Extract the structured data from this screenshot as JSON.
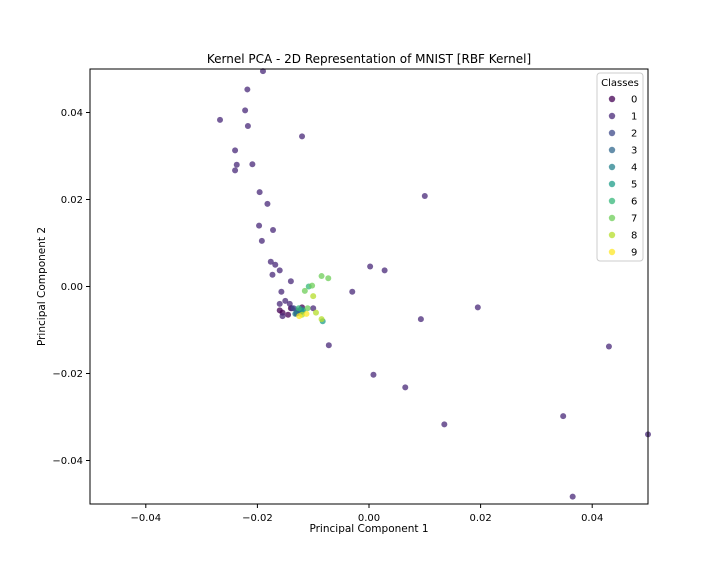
{
  "chart_data": {
    "type": "scatter",
    "title": "Kernel PCA - 2D Representation of MNIST [RBF Kernel]",
    "xlabel": "Principal Component 1",
    "ylabel": "Principal Component 2",
    "xlim": [
      -0.05,
      0.05
    ],
    "ylim": [
      -0.05,
      0.05
    ],
    "xticks": [
      -0.04,
      -0.02,
      0.0,
      0.02,
      0.04
    ],
    "xtick_labels": [
      "−0.04",
      "−0.02",
      "0.00",
      "0.02",
      "0.04"
    ],
    "yticks": [
      -0.04,
      -0.02,
      0.0,
      0.02,
      0.04
    ],
    "ytick_labels": [
      "−0.04",
      "−0.02",
      "0.00",
      "0.02",
      "0.04"
    ],
    "grid": false,
    "legend": {
      "title": "Classes",
      "placement": "top-right",
      "entries": [
        "0",
        "1",
        "2",
        "3",
        "4",
        "5",
        "6",
        "7",
        "8",
        "9"
      ]
    },
    "colors": [
      "#440154",
      "#482878",
      "#3e4989",
      "#31688e",
      "#26828e",
      "#1f9e89",
      "#35b779",
      "#6ece58",
      "#b5de2b",
      "#fde725"
    ],
    "series": [
      {
        "name": "0",
        "points": [
          [
            -0.0155,
            -0.006
          ],
          [
            -0.0145,
            -0.0065
          ],
          [
            -0.016,
            -0.0055
          ],
          [
            -0.014,
            -0.005
          ],
          [
            -0.013,
            -0.0062
          ],
          [
            -0.012,
            -0.0048
          ]
        ]
      },
      {
        "name": "1",
        "points": [
          [
            -0.019,
            0.0495
          ],
          [
            -0.0218,
            0.0453
          ],
          [
            -0.0222,
            0.0405
          ],
          [
            -0.0267,
            0.0383
          ],
          [
            -0.0217,
            0.0369
          ],
          [
            -0.012,
            0.0345
          ],
          [
            -0.024,
            0.0313
          ],
          [
            -0.0237,
            0.028
          ],
          [
            -0.0209,
            0.0281
          ],
          [
            -0.024,
            0.0267
          ],
          [
            -0.0196,
            0.0217
          ],
          [
            -0.0182,
            0.019
          ],
          [
            0.01,
            0.0208
          ],
          [
            -0.0197,
            0.014
          ],
          [
            -0.0172,
            0.013
          ],
          [
            -0.0192,
            0.0105
          ],
          [
            -0.0176,
            0.0057
          ],
          [
            -0.0168,
            0.005
          ],
          [
            0.0002,
            0.0046
          ],
          [
            0.0028,
            0.0037
          ],
          [
            -0.016,
            0.0037
          ],
          [
            -0.0173,
            0.0027
          ],
          [
            -0.014,
            0.0012
          ],
          [
            -0.003,
            -0.0012
          ],
          [
            -0.0157,
            -0.0012
          ],
          [
            0.0195,
            -0.0048
          ],
          [
            -0.016,
            -0.004
          ],
          [
            -0.015,
            -0.0033
          ],
          [
            -0.0142,
            -0.004
          ],
          [
            -0.0138,
            -0.005
          ],
          [
            -0.01,
            -0.005
          ],
          [
            0.0093,
            -0.0075
          ],
          [
            -0.0155,
            -0.0068
          ],
          [
            -0.0072,
            -0.0135
          ],
          [
            0.043,
            -0.0138
          ],
          [
            0.0008,
            -0.0203
          ],
          [
            0.0065,
            -0.0232
          ],
          [
            0.0348,
            -0.0298
          ],
          [
            0.0135,
            -0.0317
          ],
          [
            0.05,
            -0.034
          ],
          [
            0.0365,
            -0.0483
          ]
        ]
      },
      {
        "name": "2",
        "points": [
          [
            -0.013,
            -0.0055
          ],
          [
            -0.0125,
            -0.006
          ],
          [
            -0.0135,
            -0.005
          ]
        ]
      },
      {
        "name": "3",
        "points": [
          [
            -0.0128,
            -0.0058
          ],
          [
            -0.0122,
            -0.0052
          ]
        ]
      },
      {
        "name": "4",
        "points": [
          [
            -0.0132,
            -0.0063
          ],
          [
            -0.012,
            -0.0058
          ]
        ]
      },
      {
        "name": "5",
        "points": [
          [
            -0.0083,
            -0.008
          ],
          [
            -0.0118,
            -0.0055
          ]
        ]
      },
      {
        "name": "6",
        "points": [
          [
            -0.0108,
            0.0
          ],
          [
            -0.0126,
            -0.005
          ]
        ]
      },
      {
        "name": "7",
        "points": [
          [
            -0.0085,
            0.0024
          ],
          [
            -0.0073,
            0.0019
          ],
          [
            -0.0102,
            0.0002
          ],
          [
            -0.0115,
            -0.001
          ],
          [
            -0.011,
            -0.005
          ]
        ]
      },
      {
        "name": "8",
        "points": [
          [
            -0.01,
            -0.0022
          ],
          [
            -0.0095,
            -0.006
          ],
          [
            -0.012,
            -0.0065
          ],
          [
            -0.0085,
            -0.0075
          ]
        ]
      },
      {
        "name": "9",
        "points": [
          [
            -0.0112,
            -0.0063
          ],
          [
            -0.0125,
            -0.0068
          ]
        ]
      }
    ]
  }
}
